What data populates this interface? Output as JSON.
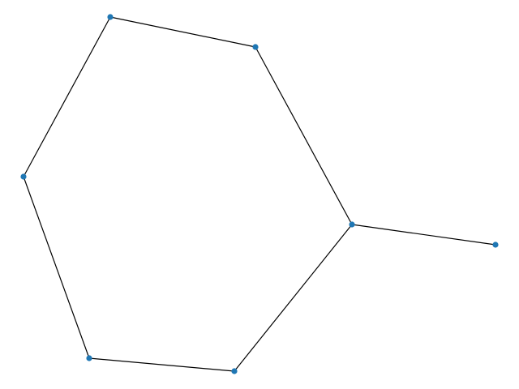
{
  "graph": {
    "node_color": "#1f77b4",
    "edge_color": "#000000",
    "background": "#ffffff",
    "nodes": [
      {
        "id": "n0"
      },
      {
        "id": "n1"
      },
      {
        "id": "n2"
      },
      {
        "id": "n3"
      },
      {
        "id": "n4"
      },
      {
        "id": "n5"
      },
      {
        "id": "n6"
      }
    ],
    "edges": [
      [
        "n0",
        "n1"
      ],
      [
        "n0",
        "n2"
      ],
      [
        "n2",
        "n3"
      ],
      [
        "n3",
        "n4"
      ],
      [
        "n4",
        "n5"
      ],
      [
        "n5",
        "n1"
      ],
      [
        "n5",
        "n6"
      ]
    ]
  }
}
